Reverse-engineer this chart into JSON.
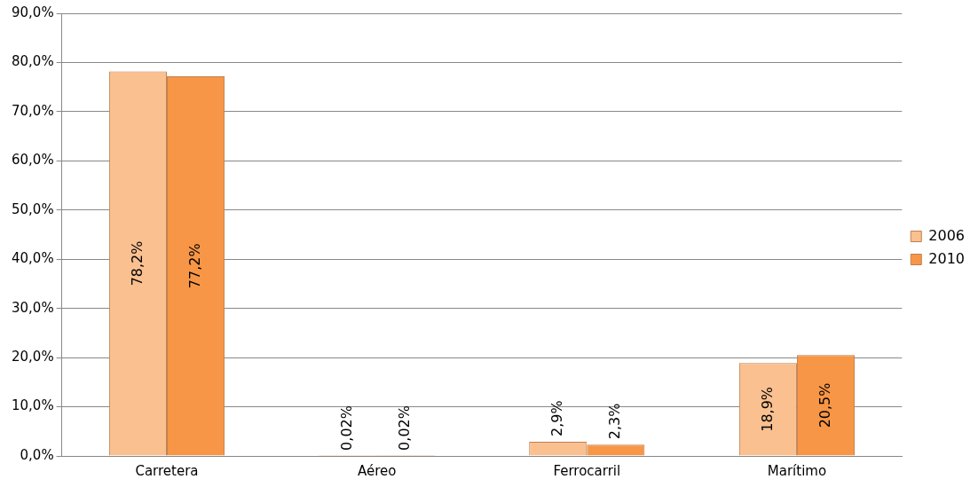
{
  "chart_data": {
    "type": "bar",
    "categories": [
      "Carretera",
      "Aéreo",
      "Ferrocarril",
      "Marítimo"
    ],
    "series": [
      {
        "name": "2006",
        "color": "#fac090",
        "values": [
          78.2,
          0.02,
          2.9,
          18.9
        ],
        "value_labels": [
          "78,2%",
          "0,02%",
          "2,9%",
          "18,9%"
        ]
      },
      {
        "name": "2010",
        "color": "#f79646",
        "values": [
          77.2,
          0.02,
          2.3,
          20.5
        ],
        "value_labels": [
          "77,2%",
          "0,02%",
          "2,3%",
          "20,5%"
        ]
      }
    ],
    "ylim": [
      0,
      90
    ],
    "yticks": [
      {
        "value": 0,
        "label": "0,0%"
      },
      {
        "value": 10,
        "label": "10,0%"
      },
      {
        "value": 20,
        "label": "20,0%"
      },
      {
        "value": 30,
        "label": "30,0%"
      },
      {
        "value": 40,
        "label": "40,0%"
      },
      {
        "value": 50,
        "label": "50,0%"
      },
      {
        "value": 60,
        "label": "60,0%"
      },
      {
        "value": 70,
        "label": "70,0%"
      },
      {
        "value": 80,
        "label": "80,0%"
      },
      {
        "value": 90,
        "label": "90,0%"
      }
    ],
    "grid": "y",
    "legend": "right"
  }
}
